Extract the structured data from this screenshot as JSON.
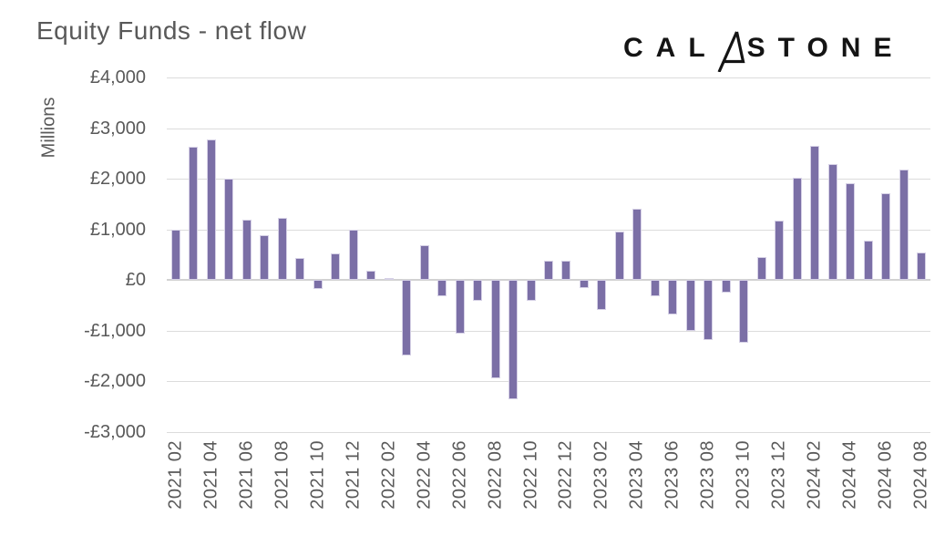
{
  "title": "Equity Funds - net flow",
  "logo": {
    "text_before_glyph": "CAL",
    "text_after_glyph": "STONE",
    "glyph_icon": "calastone-paper-plane-a"
  },
  "colors": {
    "bar": "#7B6FA6",
    "grid": "#DCDCDC",
    "zero_line": "#D2D2D2",
    "text": "#595959",
    "logo": "#141414",
    "background": "#FFFFFF"
  },
  "chart_data": {
    "type": "bar",
    "title": "Equity Funds - net flow",
    "xlabel": "",
    "ylabel": "Millions",
    "currency": "GBP",
    "ylim": [
      -3000,
      4000
    ],
    "grid": true,
    "legend": false,
    "ytick_values": [
      4000,
      3000,
      2000,
      1000,
      0,
      -1000,
      -2000,
      -3000
    ],
    "yticklabels": [
      "£4,000",
      "£3,000",
      "£2,000",
      "£1,000",
      "£0",
      "-£1,000",
      "-£2,000",
      "-£3,000"
    ],
    "x_tick_step": 2,
    "categories": [
      "2021 02",
      "2021 03",
      "2021 04",
      "2021 05",
      "2021 06",
      "2021 07",
      "2021 08",
      "2021 09",
      "2021 10",
      "2021 11",
      "2021 12",
      "2022 01",
      "2022 02",
      "2022 03",
      "2022 04",
      "2022 05",
      "2022 06",
      "2022 07",
      "2022 08",
      "2022 09",
      "2022 10",
      "2022 11",
      "2022 12",
      "2023 01",
      "2023 02",
      "2023 03",
      "2023 04",
      "2023 05",
      "2023 06",
      "2023 07",
      "2023 08",
      "2023 09",
      "2023 10",
      "2023 11",
      "2023 12",
      "2024 01",
      "2024 02",
      "2024 03",
      "2024 04",
      "2024 05",
      "2024 06",
      "2024 07",
      "2024 08"
    ],
    "values": [
      990,
      2640,
      2780,
      2000,
      1190,
      890,
      1230,
      430,
      -170,
      520,
      1000,
      190,
      40,
      -1490,
      680,
      -310,
      -1060,
      -410,
      -1930,
      -2360,
      -410,
      380,
      390,
      -160,
      -580,
      950,
      1400,
      -310,
      -670,
      -1000,
      -1190,
      -240,
      -1230,
      450,
      1180,
      2020,
      2650,
      2290,
      1920,
      780,
      1720,
      2190,
      540
    ],
    "visible_xticklabels": [
      "2021 02",
      "2021 04",
      "2021 06",
      "2021 08",
      "2021 10",
      "2021 12",
      "2022 02",
      "2022 04",
      "2022 06",
      "2022 08",
      "2022 10",
      "2022 12",
      "2023 02",
      "2023 04",
      "2023 06",
      "2023 08",
      "2023 10",
      "2023 12",
      "2024 02",
      "2024 04",
      "2024 06",
      "2024 08"
    ]
  }
}
